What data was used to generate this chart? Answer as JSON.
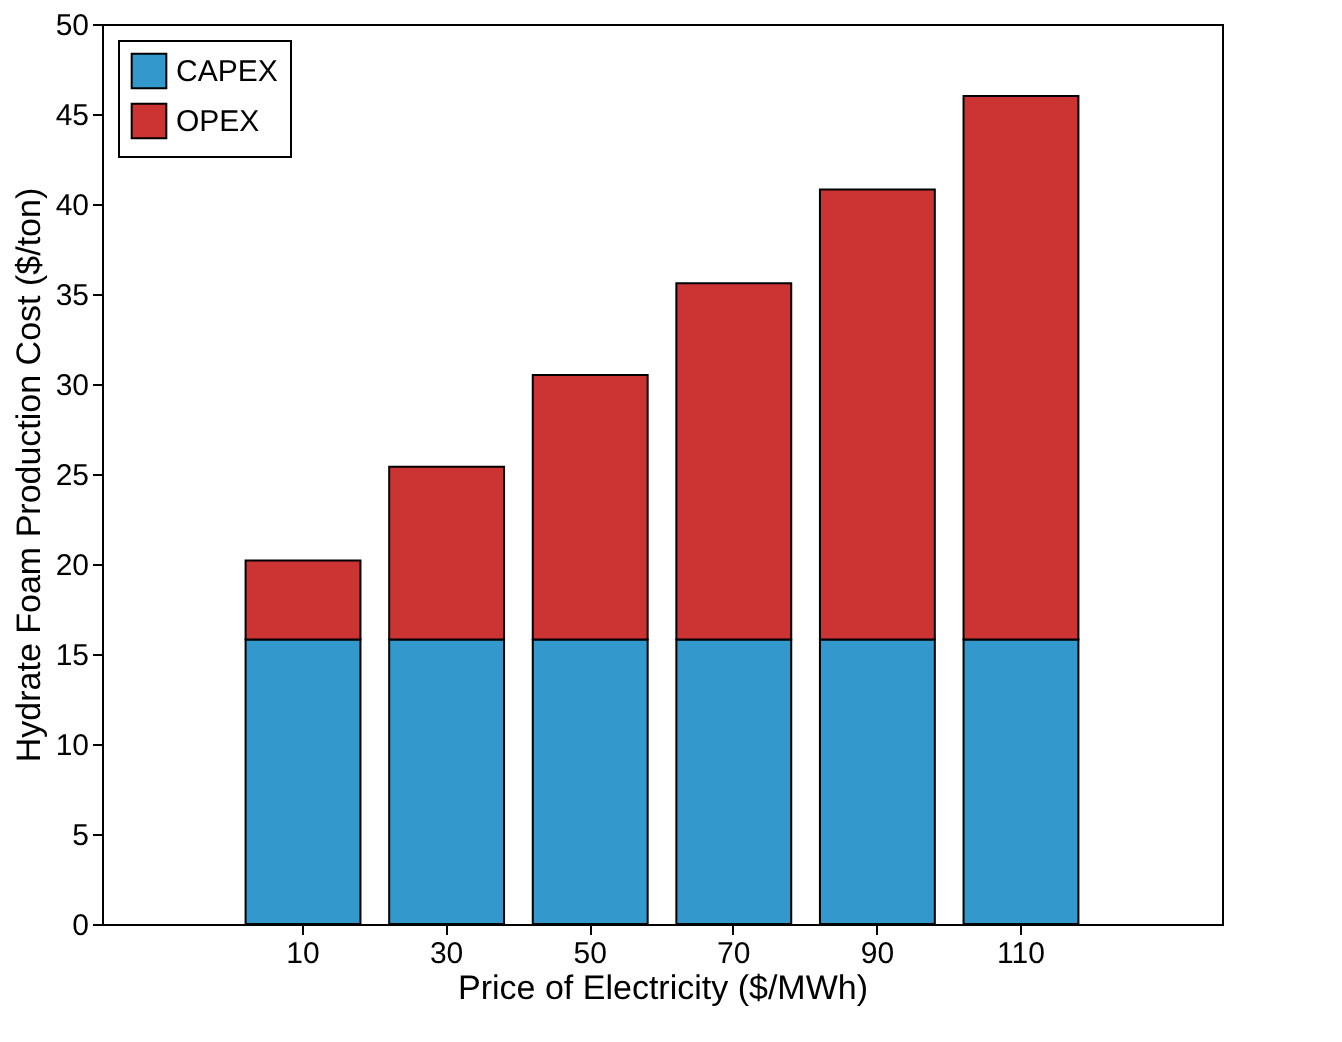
{
  "chart_data": {
    "type": "bar",
    "stacked": true,
    "xlabel": "Price of Electricity ($/MWh)",
    "ylabel": "Hydrate Foam Production Cost ($/ton)",
    "categories": [
      "10",
      "30",
      "50",
      "70",
      "90",
      "110"
    ],
    "series": [
      {
        "name": "CAPEX",
        "color": "#3399cc",
        "values": [
          15.8,
          15.8,
          15.8,
          15.8,
          15.8,
          15.8
        ]
      },
      {
        "name": "OPEX",
        "color": "#cc3333",
        "values": [
          4.4,
          9.6,
          14.7,
          19.8,
          25.0,
          30.2
        ]
      }
    ],
    "ylim": [
      0,
      50
    ],
    "yticks": [
      0,
      5,
      10,
      15,
      20,
      25,
      30,
      35,
      40,
      45,
      50
    ],
    "grid": false,
    "legend": "top left"
  }
}
